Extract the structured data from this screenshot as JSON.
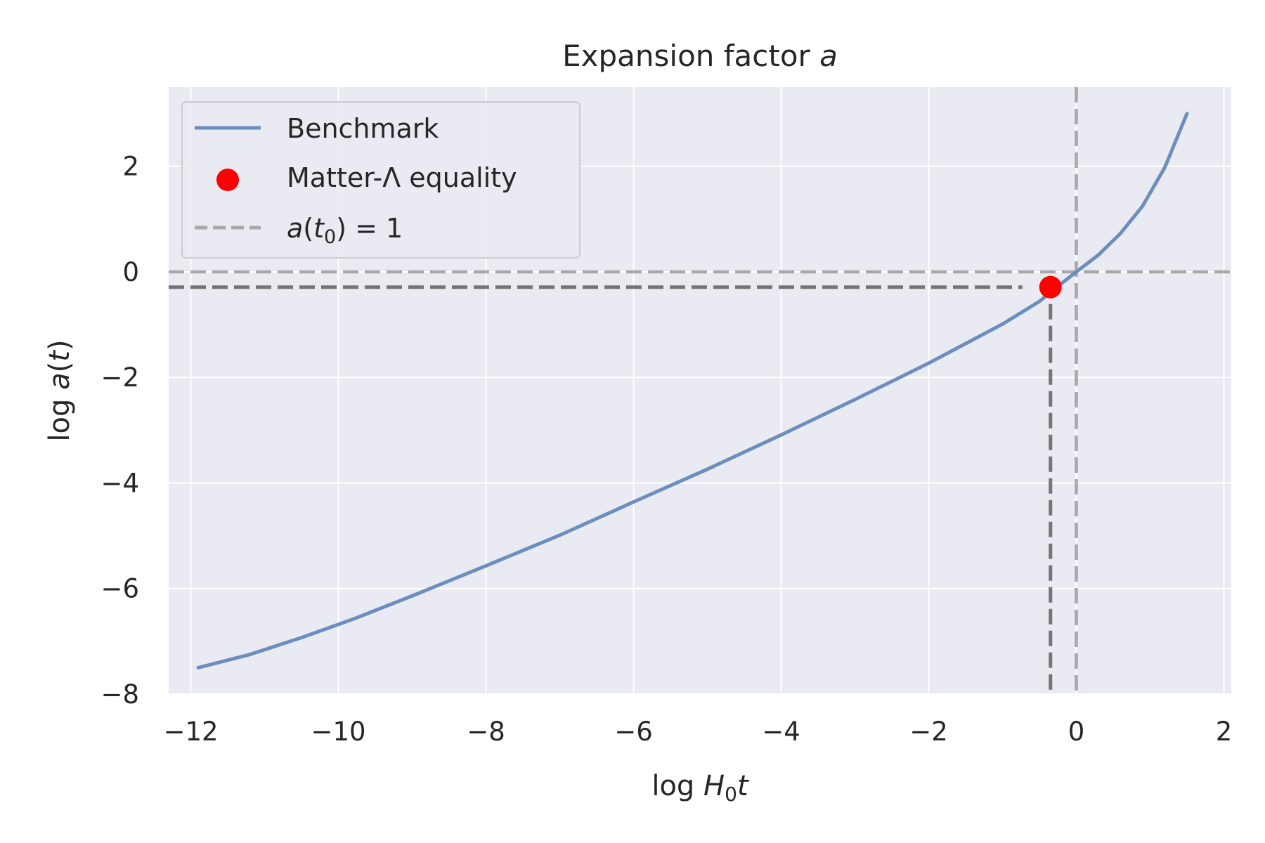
{
  "chart_data": {
    "type": "line",
    "title": "Expansion factor a",
    "xlabel": "log H0t",
    "ylabel": "log a(t)",
    "xlim": [
      -12.3,
      2.1
    ],
    "ylim": [
      -8.0,
      3.5
    ],
    "xticks": [
      -12,
      -10,
      -8,
      -6,
      -4,
      -2,
      0,
      2
    ],
    "yticks": [
      -8,
      -6,
      -4,
      -2,
      0,
      2
    ],
    "xtick_labels": [
      "−12",
      "−10",
      "−8",
      "−6",
      "−4",
      "−2",
      "0",
      "2"
    ],
    "ytick_labels": [
      "−8",
      "−6",
      "−4",
      "−2",
      "0",
      "2"
    ],
    "grid": true,
    "legend_position": "top-left",
    "series": [
      {
        "name": "Benchmark",
        "kind": "line",
        "color": "#6c8ebf",
        "x": [
          -11.9,
          -11.2,
          -10.5,
          -9.8,
          -9.0,
          -8.0,
          -7.0,
          -6.0,
          -5.0,
          -4.0,
          -3.0,
          -2.0,
          -1.0,
          -0.5,
          -0.2,
          0.0,
          0.3,
          0.6,
          0.9,
          1.2,
          1.5
        ],
        "y": [
          -7.5,
          -7.25,
          -6.93,
          -6.58,
          -6.14,
          -5.57,
          -4.99,
          -4.36,
          -3.74,
          -3.09,
          -2.42,
          -1.73,
          -0.99,
          -0.56,
          -0.22,
          0.0,
          0.32,
          0.73,
          1.25,
          1.98,
          3.0
        ]
      },
      {
        "name": "Matter-Λ equality",
        "kind": "point",
        "color": "#ff0000",
        "x": [
          -0.35
        ],
        "y": [
          -0.29
        ]
      },
      {
        "name": "a(t₀) = 1",
        "kind": "reference-lines",
        "color": "#a8a8a8",
        "x": 0,
        "y": 0
      }
    ],
    "equality_guides": {
      "x": -0.35,
      "y": -0.29,
      "color": "#757575"
    },
    "colors": {
      "plot_background": "#eaeaf2",
      "grid": "#ffffff"
    }
  }
}
